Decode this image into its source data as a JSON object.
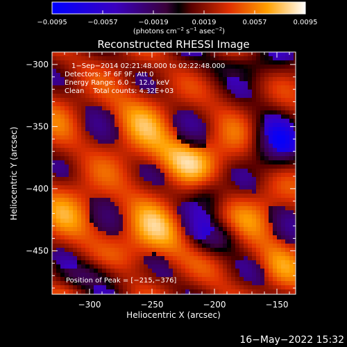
{
  "chart_data": {
    "type": "heatmap",
    "title": "Reconstructed RHESSI Image",
    "xlabel": "Heliocentric X (arcsec)",
    "ylabel": "Heliocentric Y (arcsec)",
    "xlim": [
      -330,
      -135
    ],
    "ylim": [
      -485,
      -290
    ],
    "x_ticks": [
      -300,
      -250,
      -200,
      -150
    ],
    "y_ticks": [
      -300,
      -350,
      -400,
      -450
    ],
    "x_tick_labels": [
      "−300",
      "−250",
      "−200",
      "−150"
    ],
    "y_tick_labels": [
      "−300",
      "−350",
      "−400",
      "−450"
    ],
    "colorbar": {
      "colormap": "RHESSI blue-purple-red-yellow-white",
      "range": [
        -0.0095,
        0.0095
      ],
      "tick_values": [
        -0.0095,
        -0.0057,
        -0.0019,
        0.0019,
        0.0057,
        0.0095
      ],
      "tick_labels": [
        "−0.0095",
        "−0.0057",
        "−0.0019",
        "0.0019",
        "0.0057",
        "0.0095"
      ],
      "units_parts": [
        "(photons cm",
        "−2",
        " s",
        "−1",
        " asec",
        "−2",
        ")"
      ]
    },
    "annotations": [
      "1−Sep−2014 02:21:48.000 to 02:22:48.000",
      "Detectors: 3F 6F 9F, Att 0",
      "Energy Range: 6.0 − 12.0 keV",
      "Clean    Total counts: 4.32E+03"
    ],
    "peak_label": "Position of Peak = [−215,−376]",
    "peak": [
      -215,
      -376
    ],
    "hotspots": [
      {
        "x": -222,
        "y": -375,
        "amp": 1.0,
        "sx": 26,
        "sy": 20
      },
      {
        "x": -240,
        "y": -440,
        "amp": 0.75,
        "sx": 30,
        "sy": 24
      },
      {
        "x": -300,
        "y": -420,
        "amp": 0.55,
        "sx": 30,
        "sy": 30
      },
      {
        "x": -270,
        "y": -345,
        "amp": 0.45,
        "sx": 40,
        "sy": 30
      },
      {
        "x": -150,
        "y": -460,
        "amp": 0.6,
        "sx": 18,
        "sy": 22
      },
      {
        "x": -160,
        "y": -420,
        "amp": 0.5,
        "sx": 22,
        "sy": 26
      }
    ],
    "cold_regions": [
      {
        "x": -150,
        "y": -365,
        "amp": 0.9,
        "sx": 20,
        "sy": 20
      },
      {
        "x": -200,
        "y": -440,
        "amp": 0.8,
        "sx": 22,
        "sy": 14
      },
      {
        "x": -205,
        "y": -405,
        "amp": 0.6,
        "sx": 15,
        "sy": 15
      },
      {
        "x": -300,
        "y": -470,
        "amp": 0.6,
        "sx": 30,
        "sy": 12
      },
      {
        "x": -180,
        "y": -300,
        "amp": 0.5,
        "sx": 30,
        "sy": 14
      }
    ]
  },
  "footer": {
    "timestamp": "16−May−2022 15:32"
  }
}
